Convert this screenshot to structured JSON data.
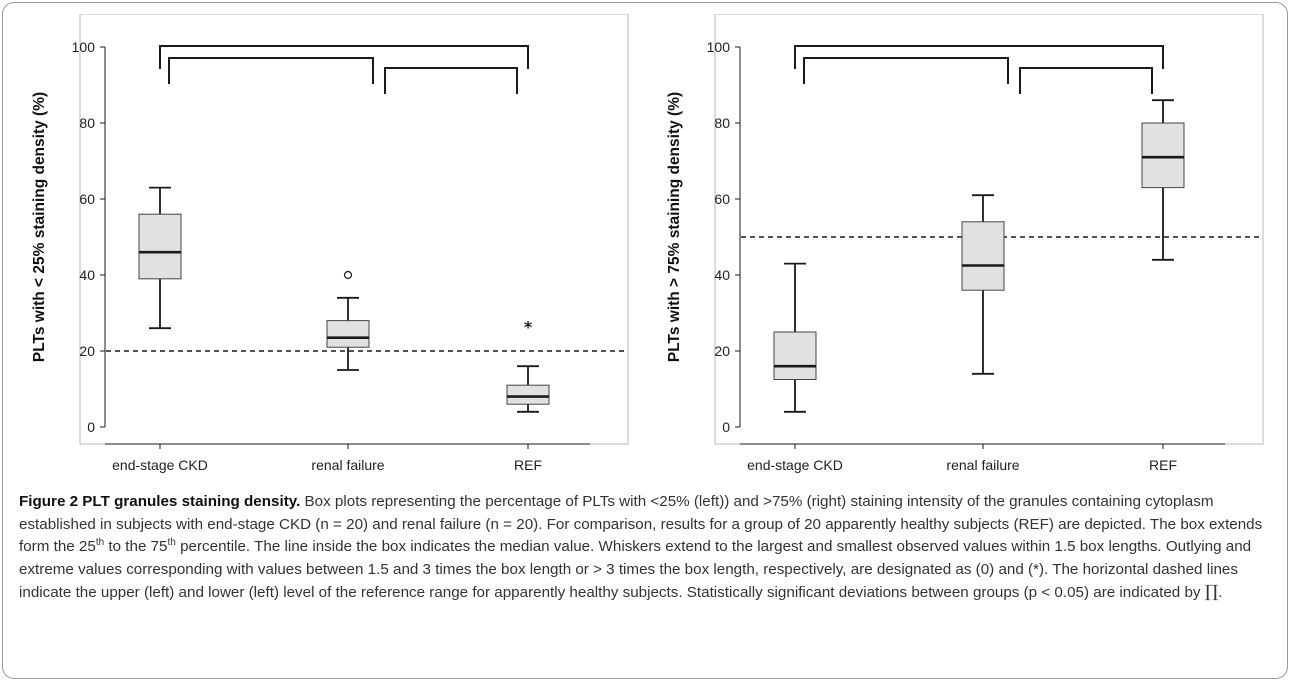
{
  "chart_data": [
    {
      "type": "box",
      "ylabel": "PLTs with < 25% staining density (%)",
      "ylim": [
        0,
        100
      ],
      "yticks": [
        0,
        20,
        40,
        60,
        80,
        100
      ],
      "categories": [
        "end-stage CKD",
        "renal failure",
        "REF"
      ],
      "boxes": [
        {
          "category": "end-stage CKD",
          "whisker_low": 26,
          "q1": 39,
          "median": 46,
          "q3": 56,
          "whisker_high": 63,
          "outliers": [],
          "extremes": []
        },
        {
          "category": "renal failure",
          "whisker_low": 15,
          "q1": 21,
          "median": 23.5,
          "q3": 28,
          "whisker_high": 34,
          "outliers": [
            40
          ],
          "extremes": []
        },
        {
          "category": "REF",
          "whisker_low": 4,
          "q1": 6,
          "median": 8,
          "q3": 11,
          "whisker_high": 16,
          "outliers": [],
          "extremes": [
            27
          ]
        }
      ],
      "reference_line": 20,
      "significance_brackets": [
        {
          "from": "end-stage CKD",
          "to": "REF"
        },
        {
          "from": "end-stage CKD",
          "to": "renal failure"
        },
        {
          "from": "renal failure",
          "to": "REF"
        }
      ]
    },
    {
      "type": "box",
      "ylabel": "PLTs with > 75% staining density (%)",
      "ylim": [
        0,
        100
      ],
      "yticks": [
        0,
        20,
        40,
        60,
        80,
        100
      ],
      "categories": [
        "end-stage CKD",
        "renal failure",
        "REF"
      ],
      "boxes": [
        {
          "category": "end-stage CKD",
          "whisker_low": 4,
          "q1": 12.5,
          "median": 16,
          "q3": 25,
          "whisker_high": 43,
          "outliers": [],
          "extremes": []
        },
        {
          "category": "renal failure",
          "whisker_low": 14,
          "q1": 36,
          "median": 42.5,
          "q3": 54,
          "whisker_high": 61,
          "outliers": [],
          "extremes": []
        },
        {
          "category": "REF",
          "whisker_low": 44,
          "q1": 63,
          "median": 71,
          "q3": 80,
          "whisker_high": 86,
          "outliers": [],
          "extremes": []
        }
      ],
      "reference_line": 50,
      "significance_brackets": [
        {
          "from": "end-stage CKD",
          "to": "REF"
        },
        {
          "from": "end-stage CKD",
          "to": "renal failure"
        },
        {
          "from": "renal failure",
          "to": "REF"
        }
      ]
    }
  ],
  "caption": {
    "title": "Figure 2 PLT granules staining density.",
    "p1": "Box plots representing the percentage of PLTs with <25% (left)) and >75% (right) staining intensity of the granules containing cytoplasm established in subjects with end-stage CKD (n = 20) and renal failure (n = 20). For comparison, results for a group of 20 apparently healthy subjects (REF) are depicted. The box extends form the 25",
    "sup1": "th",
    "p2": " to the 75",
    "sup2": "th",
    "p3": " percentile. The line inside the box indicates the median value. Whiskers extend to the largest and smallest observed values within 1.5 box lengths. Outlying and extreme values corresponding with values between 1.5 and 3 times the box length or > 3 times the box length, respectively, are designated as (0) and (*). The horizontal dashed lines indicate the upper (left) and lower (left) level of the reference range for apparently healthy subjects. Statistically significant deviations between groups (p < 0.05) are indicated by ",
    "symbol": "∏",
    "end": "."
  },
  "colors": {
    "box_fill": "#e1e1e1",
    "stroke": "#1a1a1a",
    "frame": "#b8b8b8",
    "text": "#222222"
  }
}
